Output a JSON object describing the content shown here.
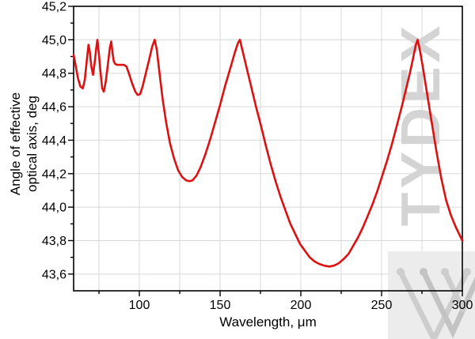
{
  "figure": {
    "kind": "scientific line chart",
    "background": "#ffffff"
  },
  "labels": {
    "x_title": "Wavelength, μm",
    "y_title_line1": "Angle of effective",
    "y_title_line2": "optical axis, deg"
  },
  "watermark": {
    "text": "TYDEX",
    "text_color": "#d4d4d4",
    "square_color": "#ececec",
    "mark_color_light": "#cdcdcd",
    "mark_color_dark": "#c3c3c3"
  },
  "colors": {
    "curve": "#dd1111",
    "grid": "#d8d8d8",
    "frame": "#000000",
    "text": "#000000"
  },
  "axes": {
    "x": {
      "tick_labels": [
        "100",
        "150",
        "200",
        "250",
        "300"
      ],
      "decimal_separator": "none"
    },
    "y": {
      "tick_labels": [
        "43,6",
        "43,8",
        "44,0",
        "44,2",
        "44,4",
        "44,6",
        "44,8",
        "45,0",
        "45,2"
      ],
      "decimal_separator": "comma"
    }
  },
  "chart_data": {
    "type": "line",
    "title": "",
    "xlabel": "Wavelength, μm",
    "ylabel": "Angle of effective optical axis, deg",
    "xlim": [
      59.3,
      300
    ],
    "ylim": [
      43.5,
      45.2
    ],
    "x_ticks_major": [
      100,
      150,
      200,
      250,
      300
    ],
    "x_ticks_minor": [
      75,
      125,
      175,
      225,
      275
    ],
    "y_ticks_major": [
      43.6,
      43.8,
      44.0,
      44.2,
      44.4,
      44.6,
      44.8,
      45.0,
      45.2
    ],
    "y_ticks_minor": [
      43.7,
      43.9,
      44.1,
      44.3,
      44.5,
      44.7,
      44.9,
      45.1
    ],
    "grid": {
      "vertical": "every 25 um (major and minor)",
      "horizontal": "every 0.2 deg (major only)",
      "color": "#d8d8d8"
    },
    "legend": "none",
    "series": [
      {
        "name": "Angle of effective optical axis",
        "color": "#dd1111",
        "points": [
          [
            59.3,
            44.91
          ],
          [
            60.5,
            44.85
          ],
          [
            62,
            44.77
          ],
          [
            63.5,
            44.72
          ],
          [
            65,
            44.71
          ],
          [
            66.2,
            44.76
          ],
          [
            67.4,
            44.87
          ],
          [
            68.5,
            44.97
          ],
          [
            69.3,
            44.93
          ],
          [
            70.3,
            44.84
          ],
          [
            71.3,
            44.79
          ],
          [
            72.3,
            44.86
          ],
          [
            73.3,
            44.95
          ],
          [
            74,
            45.0
          ],
          [
            74.9,
            44.92
          ],
          [
            75.9,
            44.81
          ],
          [
            77,
            44.71
          ],
          [
            78,
            44.69
          ],
          [
            79.2,
            44.75
          ],
          [
            80.5,
            44.85
          ],
          [
            81.7,
            44.95
          ],
          [
            82.6,
            44.99
          ],
          [
            83.4,
            44.92
          ],
          [
            84.2,
            44.87
          ],
          [
            85.2,
            44.855
          ],
          [
            86.5,
            44.85
          ],
          [
            88.5,
            44.85
          ],
          [
            90.5,
            44.85
          ],
          [
            92,
            44.84
          ],
          [
            93.5,
            44.8
          ],
          [
            95.5,
            44.74
          ],
          [
            97.5,
            44.69
          ],
          [
            99,
            44.67
          ],
          [
            100.5,
            44.675
          ],
          [
            102,
            44.72
          ],
          [
            104,
            44.8
          ],
          [
            106,
            44.88
          ],
          [
            108,
            44.96
          ],
          [
            109.5,
            45.0
          ],
          [
            110.8,
            44.94
          ],
          [
            112.5,
            44.8
          ],
          [
            114.5,
            44.64
          ],
          [
            116.5,
            44.51
          ],
          [
            119,
            44.38
          ],
          [
            121.5,
            44.29
          ],
          [
            124,
            44.22
          ],
          [
            126.5,
            44.18
          ],
          [
            129,
            44.16
          ],
          [
            131,
            44.155
          ],
          [
            133,
            44.16
          ],
          [
            135.5,
            44.19
          ],
          [
            138,
            44.24
          ],
          [
            141,
            44.32
          ],
          [
            144,
            44.41
          ],
          [
            147,
            44.51
          ],
          [
            150,
            44.61
          ],
          [
            153,
            44.72
          ],
          [
            156,
            44.82
          ],
          [
            159,
            44.92
          ],
          [
            161,
            44.98
          ],
          [
            162.3,
            45.0
          ],
          [
            164,
            44.93
          ],
          [
            166.5,
            44.83
          ],
          [
            169.5,
            44.71
          ],
          [
            172.5,
            44.59
          ],
          [
            175.5,
            44.48
          ],
          [
            178.5,
            44.36
          ],
          [
            181.5,
            44.25
          ],
          [
            184.5,
            44.15
          ],
          [
            187.5,
            44.06
          ],
          [
            190.5,
            43.98
          ],
          [
            193.5,
            43.9
          ],
          [
            196.5,
            43.84
          ],
          [
            199.5,
            43.78
          ],
          [
            202.5,
            43.74
          ],
          [
            205.5,
            43.7
          ],
          [
            208.5,
            43.675
          ],
          [
            211.5,
            43.66
          ],
          [
            214.5,
            43.65
          ],
          [
            217.5,
            43.645
          ],
          [
            220.5,
            43.65
          ],
          [
            223.5,
            43.665
          ],
          [
            226.5,
            43.69
          ],
          [
            229.5,
            43.72
          ],
          [
            232.5,
            43.77
          ],
          [
            235.5,
            43.82
          ],
          [
            238.5,
            43.88
          ],
          [
            241.5,
            43.95
          ],
          [
            244.5,
            44.02
          ],
          [
            247.5,
            44.1
          ],
          [
            250.5,
            44.19
          ],
          [
            253.5,
            44.28
          ],
          [
            256.5,
            44.38
          ],
          [
            259.5,
            44.49
          ],
          [
            262.5,
            44.6
          ],
          [
            265,
            44.7
          ],
          [
            267.5,
            44.8
          ],
          [
            269.5,
            44.89
          ],
          [
            271.2,
            44.97
          ],
          [
            272.3,
            45.0
          ],
          [
            273.5,
            44.95
          ],
          [
            275.5,
            44.84
          ],
          [
            278,
            44.69
          ],
          [
            281,
            44.51
          ],
          [
            284,
            44.33
          ],
          [
            287,
            44.17
          ],
          [
            290,
            44.04
          ],
          [
            293,
            43.95
          ],
          [
            296,
            43.88
          ],
          [
            298,
            43.84
          ],
          [
            300,
            43.8
          ]
        ]
      }
    ]
  }
}
